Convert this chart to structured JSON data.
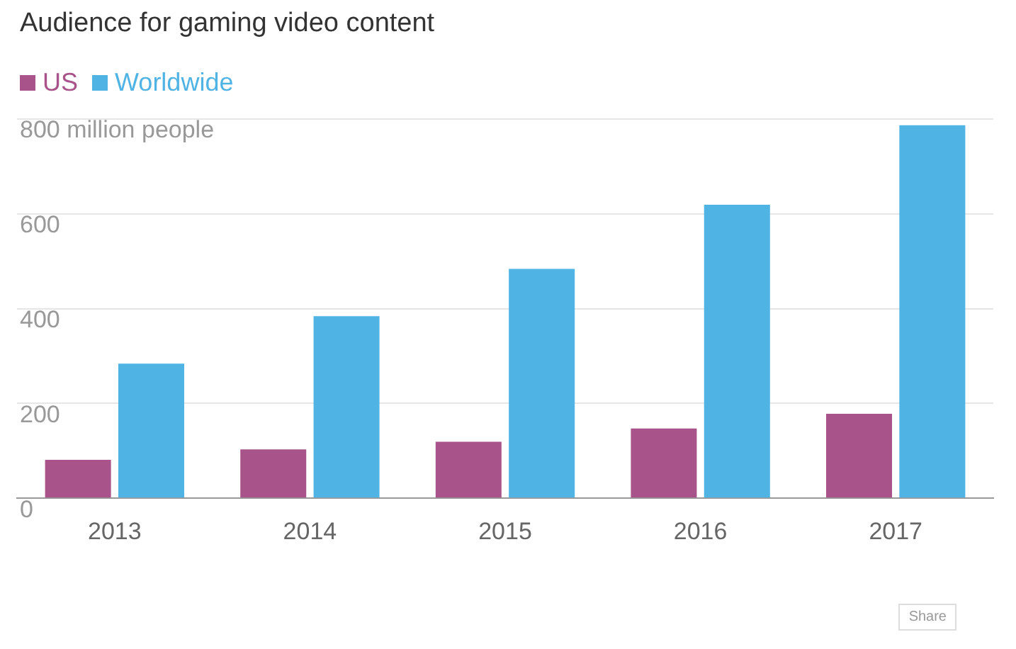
{
  "chart_data": {
    "type": "bar",
    "title": "Audience for gaming video content",
    "categories": [
      "2013",
      "2014",
      "2015",
      "2016",
      "2017"
    ],
    "series": [
      {
        "name": "US",
        "color": "#a8548a",
        "values": [
          81,
          103,
          119,
          147,
          178
        ]
      },
      {
        "name": "Worldwide",
        "color": "#4fb3e4",
        "values": [
          284,
          384,
          484,
          619,
          787
        ]
      }
    ],
    "ylim": [
      0,
      800
    ],
    "yticks": [
      0,
      200,
      400,
      600,
      {
        "value": 800,
        "label": "800 million people"
      }
    ],
    "grid": "y",
    "legend": "top left",
    "annotations": [
      "Share"
    ]
  }
}
